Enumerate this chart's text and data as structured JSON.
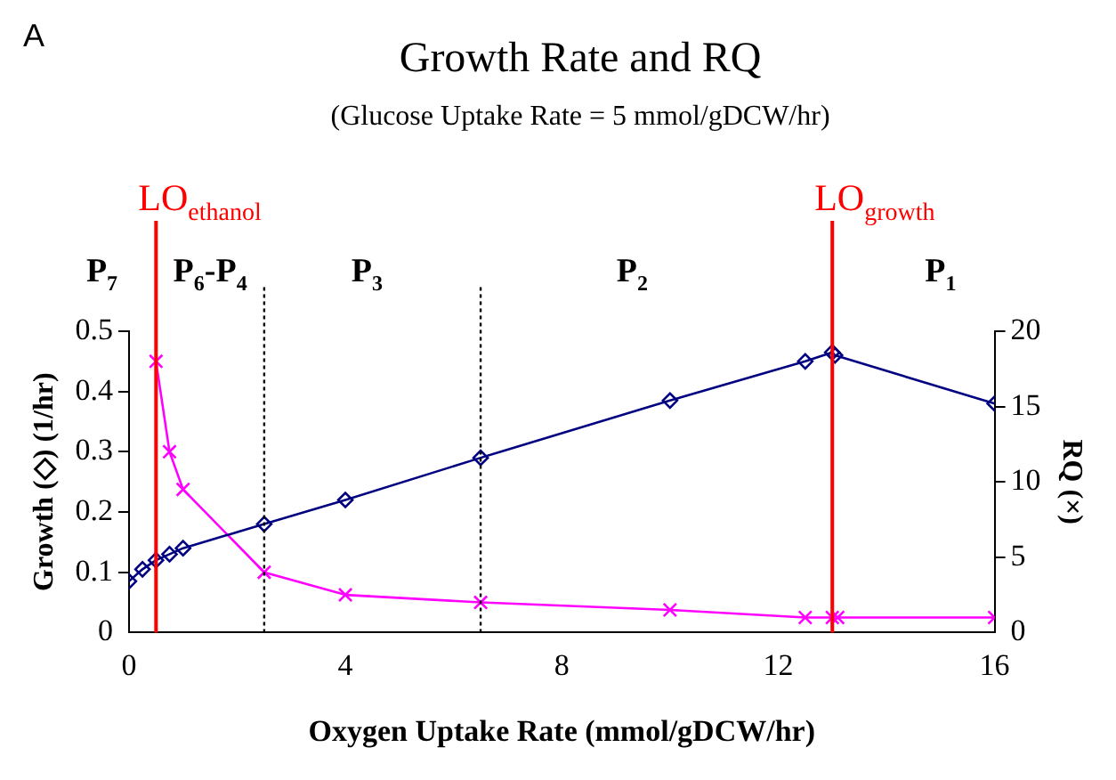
{
  "chart_data": {
    "type": "line",
    "title": "Growth Rate and RQ",
    "subtitle": "(Glucose Uptake Rate = 5 mmol/gDCW/hr)",
    "xlabel": "Oxygen Uptake Rate (mmol/gDCW/hr)",
    "ylabel": "Growth (◇) (1/hr)",
    "y2label": "RQ (×)",
    "annotations": [
      "A",
      "P$_{7}$",
      "P$_{6}$-P$_{4}$",
      "P$_{3}$",
      "P$_{2}$",
      "P$_{1}$"
    ],
    "xlim": [
      0,
      16
    ],
    "xticks": [
      0,
      4,
      8,
      12,
      16
    ],
    "ylim": [
      0,
      0.5
    ],
    "yticks": [
      0,
      0.1,
      0.2,
      0.3,
      0.4,
      0.5
    ],
    "y2lim": [
      0,
      20
    ],
    "y2ticks": [
      0,
      5,
      10,
      15,
      20
    ],
    "series": [
      {
        "color": "#000080",
        "marker": "diamond",
        "x": [
          0,
          0.25,
          0.5,
          0.75,
          1,
          2.5,
          4,
          6.5,
          10,
          12.5,
          13,
          13.05,
          16
        ],
        "values": [
          0.085,
          0.105,
          0.12,
          0.13,
          0.14,
          0.18,
          0.22,
          0.29,
          0.385,
          0.45,
          0.465,
          0.46,
          0.38
        ]
      },
      {
        "color": "#ff00ff",
        "marker": "cross",
        "axis": "y2",
        "x": [
          0.5,
          0.75,
          1,
          2.5,
          4,
          6.5,
          10,
          12.5,
          13,
          13.1,
          16
        ],
        "values": [
          18,
          12,
          9.5,
          4,
          2.5,
          2,
          1.5,
          1,
          1,
          1,
          1
        ]
      }
    ],
    "ref_lines": [
      {
        "axis": "x",
        "value": 0.5,
        "label": "LO$_{ethanol}$",
        "color": "#ff0000",
        "line_style": "solid"
      },
      {
        "axis": "x",
        "value": 2.5,
        "color": "#000000",
        "line_style": "dotted"
      },
      {
        "axis": "x",
        "value": 6.5,
        "color": "#000000",
        "line_style": "dotted"
      },
      {
        "axis": "x",
        "value": 13,
        "label": "LO$_{growth}$",
        "color": "#ff0000",
        "line_style": "solid"
      }
    ],
    "grid": false,
    "legend": false
  }
}
